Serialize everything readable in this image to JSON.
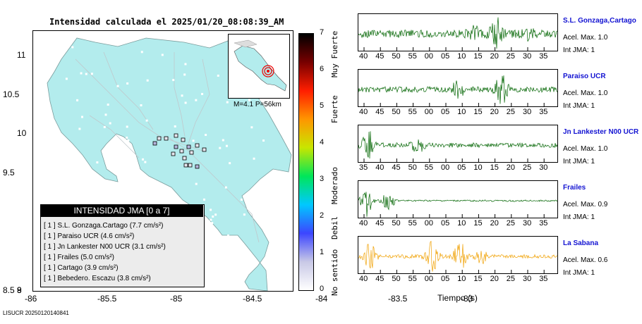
{
  "title": "Intensidad calculada el 2025/01/20_08:08:39_AM",
  "footer": "LISUCR 20250120140841",
  "map": {
    "lon_ticks": [
      "-86",
      "-85.5",
      "-85",
      "-84.5",
      "-84",
      "-83.5",
      "-83"
    ],
    "lat_ticks": [
      "11",
      "10.5",
      "10",
      "9.5",
      "9",
      "8.5",
      "8"
    ],
    "inset_label": "M=4.1 P=56km",
    "land_color": "#b3eced",
    "station_colors": [
      "#e6e6ee",
      "#b6b6dc"
    ]
  },
  "legend": {
    "header": "INTENSIDAD JMA [0 a 7]",
    "rows": [
      {
        "text": "[ 1 ]  S.L. Gonzaga.Cartago (7.7 cm/s²)"
      },
      {
        "text": "[ 1 ]  Paraiso UCR (4.6 cm/s²)"
      },
      {
        "text": "[ 1 ]  Jn Lankester N00 UCR (3.1 cm/s²)"
      },
      {
        "text": "[ 1 ]  Frailes (5.0 cm/s²)"
      },
      {
        "text": "[ 1 ]  Cartago (3.9 cm/s²)"
      },
      {
        "text": "[ 1 ]  Bebedero. Escazu (3.8 cm/s²)"
      }
    ]
  },
  "colorbar": {
    "ticks": [
      "7",
      "6",
      "5",
      "4",
      "3",
      "2",
      "1",
      "0"
    ],
    "categories": [
      "Muy Fuerte",
      "Fuerte",
      "Moderado",
      "Debil",
      "No sentido"
    ],
    "colors": [
      "#ffffff",
      "#c8c8e6",
      "#3c46ff",
      "#00c8ff",
      "#00e65a",
      "#c8e600",
      "#ff9600",
      "#ff1e00",
      "#780000",
      "#000000"
    ]
  },
  "x_axis_title": "Tiempo (s)",
  "chart_data": [
    {
      "type": "line",
      "station": "S.L. Gonzaga,Cartago",
      "acel_label": "Acel. Max. 1.0",
      "jma_label": "Int JMA: 1",
      "color": "#006400",
      "x_tick_labels": [
        "40",
        "45",
        "50",
        "55",
        "00",
        "05",
        "10",
        "15",
        "20",
        "25",
        "30",
        "35"
      ],
      "trace": {
        "base": 0.25,
        "bursts": [
          {
            "at": 0.69,
            "amp": 1.0
          },
          {
            "at": 0.85,
            "amp": 0.45
          },
          {
            "at": 0.58,
            "amp": 0.4
          }
        ],
        "seed": 3
      }
    },
    {
      "type": "line",
      "station": "Paraiso UCR",
      "acel_label": "Acel. Max. 1.0",
      "jma_label": "Int JMA: 1",
      "color": "#006400",
      "x_tick_labels": [
        "40",
        "45",
        "50",
        "55",
        "00",
        "05",
        "10",
        "15",
        "20",
        "25",
        "30",
        "35"
      ],
      "trace": {
        "base": 0.18,
        "bursts": [
          {
            "at": 0.72,
            "amp": 1.0
          },
          {
            "at": 0.5,
            "amp": 0.5
          }
        ],
        "seed": 7
      }
    },
    {
      "type": "line",
      "station": "Jn Lankester N00 UCR",
      "acel_label": "Acel. Max. 1.0",
      "jma_label": "Int JMA: 1",
      "color": "#006400",
      "x_tick_labels": [
        "35",
        "40",
        "45",
        "50",
        "55",
        "00",
        "05",
        "10",
        "15",
        "20",
        "25",
        "30"
      ],
      "trace": {
        "base": 0.15,
        "bursts": [
          {
            "at": 0.05,
            "amp": 1.0
          },
          {
            "at": 0.3,
            "amp": 0.5
          }
        ],
        "seed": 11
      }
    },
    {
      "type": "line",
      "station": "Frailes",
      "acel_label": "Acel. Max. 0.9",
      "jma_label": "Int JMA: 1",
      "color": "#006400",
      "x_tick_labels": [
        "40",
        "45",
        "50",
        "55",
        "00",
        "05",
        "10",
        "15",
        "20",
        "25",
        "30",
        "35"
      ],
      "trace": {
        "base": 0.05,
        "bursts": [
          {
            "at": 0.04,
            "amp": 1.0
          },
          {
            "at": 0.15,
            "amp": 0.6
          }
        ],
        "seed": 19
      }
    },
    {
      "type": "line",
      "station": "La Sabana",
      "acel_label": "Acel. Max. 0.6",
      "jma_label": "Int JMA: 1",
      "color": "#f0a000",
      "x_tick_labels": [
        "40",
        "45",
        "50",
        "55",
        "00",
        "05",
        "10",
        "15",
        "20",
        "25",
        "30",
        "35"
      ],
      "trace": {
        "base": 0.12,
        "bursts": [
          {
            "at": 0.06,
            "amp": 0.85
          },
          {
            "at": 0.37,
            "amp": 1.0
          },
          {
            "at": 0.51,
            "amp": 1.0
          },
          {
            "at": 0.62,
            "amp": 0.4
          }
        ],
        "seed": 23
      }
    }
  ]
}
